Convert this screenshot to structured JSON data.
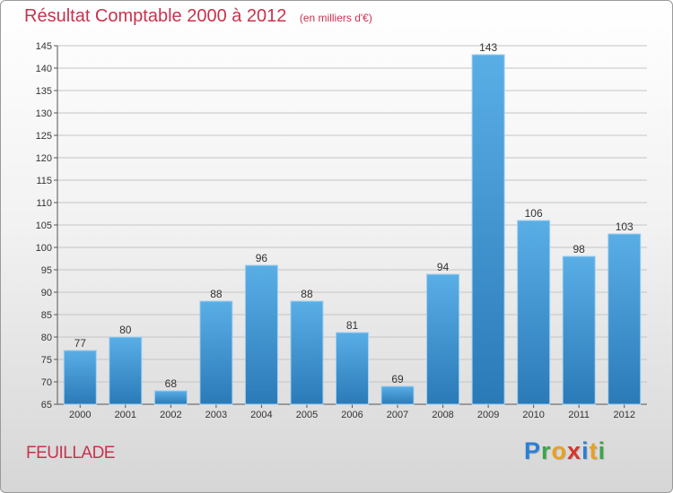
{
  "chart_data": {
    "type": "bar",
    "title": "Résultat Comptable 2000 à 2012",
    "subtitle": "(en milliers d'€)",
    "categories": [
      "2000",
      "2001",
      "2002",
      "2003",
      "2004",
      "2005",
      "2006",
      "2007",
      "2008",
      "2009",
      "2010",
      "2011",
      "2012"
    ],
    "values": [
      77,
      80,
      68,
      88,
      96,
      88,
      81,
      69,
      94,
      143,
      106,
      98,
      103
    ],
    "ylim": [
      65,
      145
    ],
    "yticks": [
      65,
      70,
      75,
      80,
      85,
      90,
      95,
      100,
      105,
      110,
      115,
      120,
      125,
      130,
      135,
      140,
      145
    ],
    "xlabel": "",
    "ylabel": "",
    "grid": true,
    "bar_color_top": "#5aaee6",
    "bar_color_bottom": "#2a7ab8"
  },
  "commune": "FEUILLADE",
  "logo": {
    "letters": [
      {
        "char": "P",
        "color": "#2a7fd4"
      },
      {
        "char": "r",
        "color": "#3aa64a"
      },
      {
        "char": "o",
        "color": "#e8a020"
      },
      {
        "char": "x",
        "color": "#d8342c"
      },
      {
        "char": "i",
        "color": "#2a7fd4"
      },
      {
        "char": "t",
        "color": "#e8a020"
      },
      {
        "char": "i",
        "color": "#3aa64a"
      }
    ]
  }
}
